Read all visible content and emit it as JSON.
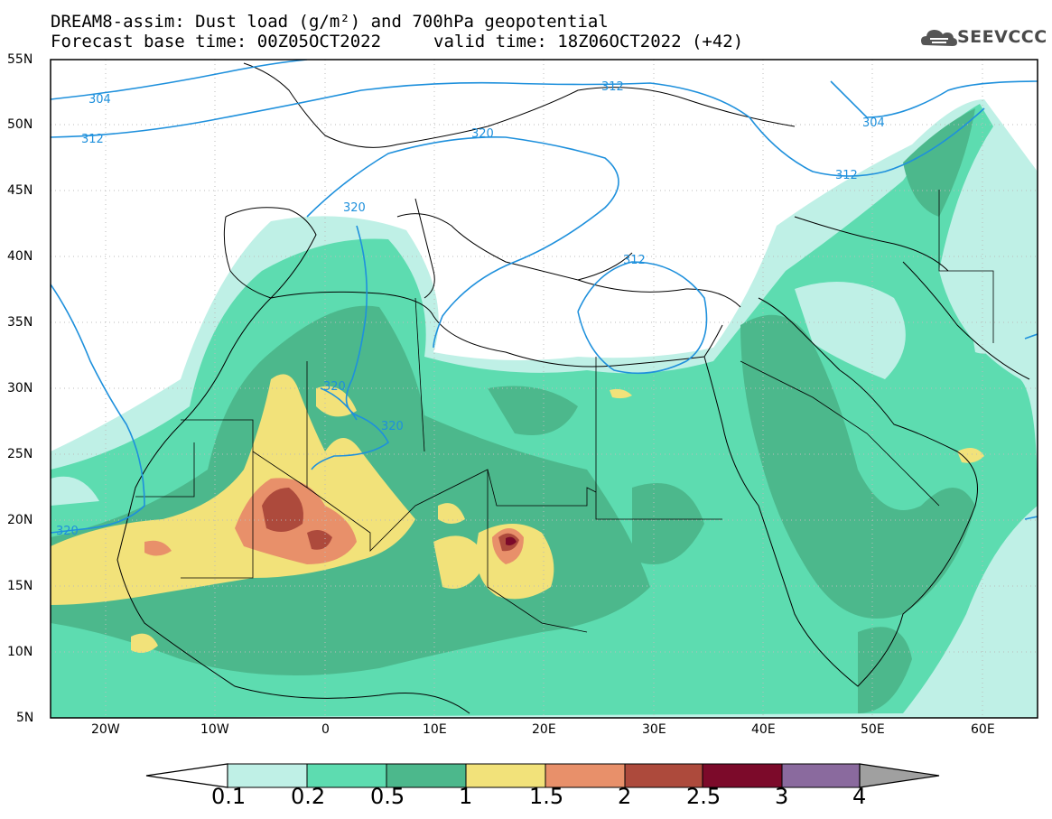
{
  "title": {
    "line1": "DREAM8-assim: Dust load (g/m²) and 700hPa geopotential",
    "line2": "Forecast base time: 00Z05OCT2022",
    "valid": "valid time: 18Z06OCT2022 (+42)"
  },
  "logo": {
    "text": "SEEVCCC",
    "icon": "cloud-icon"
  },
  "axes": {
    "lat_labels": [
      "55N",
      "50N",
      "45N",
      "40N",
      "35N",
      "30N",
      "25N",
      "20N",
      "15N",
      "10N",
      "5N"
    ],
    "lon_labels": [
      "20W",
      "10W",
      "0",
      "10E",
      "20E",
      "30E",
      "40E",
      "50E",
      "60E"
    ]
  },
  "contours": {
    "labels": [
      "304",
      "312",
      "320",
      "312",
      "304",
      "312",
      "320",
      "320",
      "320",
      "312",
      "320"
    ],
    "color": "#1e90dc"
  },
  "colorbar": {
    "labels": [
      "0.1",
      "0.2",
      "0.5",
      "1",
      "1.5",
      "2",
      "2.5",
      "3",
      "4"
    ],
    "colors": [
      "#bff0e6",
      "#5ddcb0",
      "#4cb88c",
      "#f2e27a",
      "#e8906a",
      "#ad4a3c",
      "#7c0a2a",
      "#8a6a9e",
      "#a0a0a0"
    ]
  },
  "dust_colors": {
    "c01": "#bff0e6",
    "c02": "#5ddcb0",
    "c05": "#4cb88c",
    "c1": "#f2e27a",
    "c15": "#e8906a",
    "c2": "#ad4a3c",
    "c25": "#7c0a2a"
  }
}
